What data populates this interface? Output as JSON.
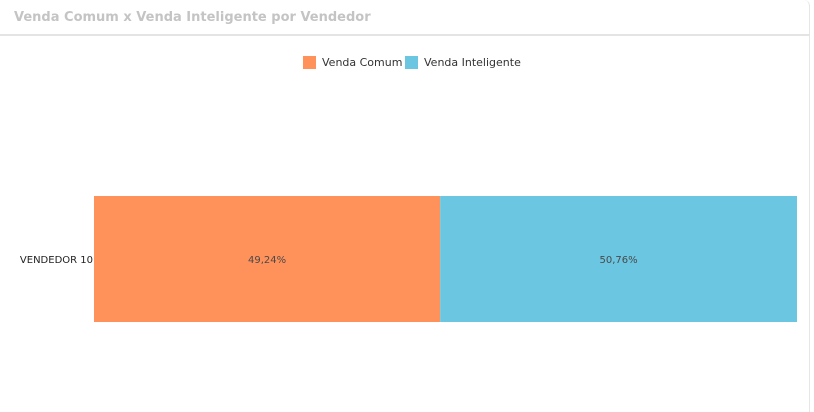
{
  "panel": {
    "title": "Venda Comum x Venda Inteligente por Vendedor"
  },
  "chart_data": {
    "type": "bar",
    "orientation": "horizontal",
    "stacked": true,
    "percent": true,
    "categories": [
      "VENDEDOR 10"
    ],
    "series": [
      {
        "name": "Venda Comum",
        "values": [
          49.24
        ],
        "labels": [
          "49,24%"
        ],
        "color": "#FF915A"
      },
      {
        "name": "Venda Inteligente",
        "values": [
          50.76
        ],
        "labels": [
          "50,76%"
        ],
        "color": "#6BC6E1"
      }
    ],
    "xlim": [
      0,
      100
    ],
    "grid": false,
    "legend": "top-center"
  }
}
